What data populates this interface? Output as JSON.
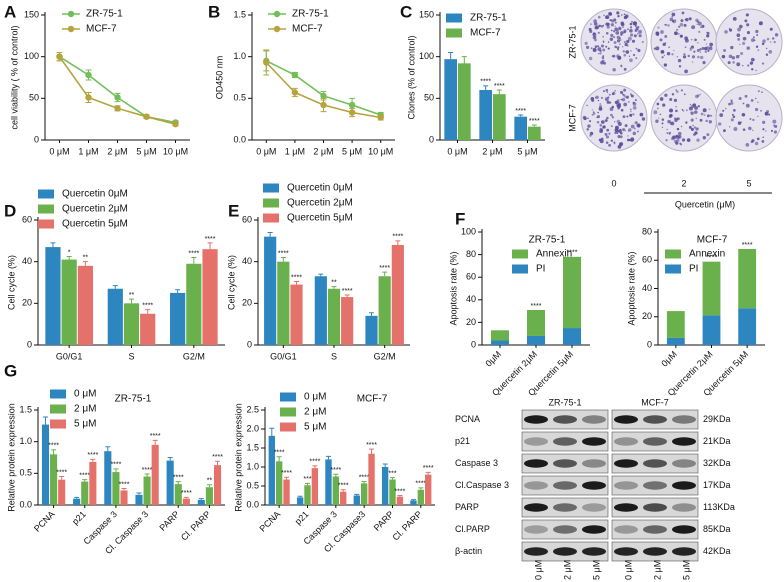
{
  "panel_letters": [
    "A",
    "B",
    "C",
    "D",
    "E",
    "F",
    "G"
  ],
  "chart_data": [
    {
      "type": "line",
      "ylabel": "cell viability ( % of control)",
      "categories": [
        "0 μM",
        "1 μM",
        "2 μM",
        "5 μM",
        "10 μM"
      ],
      "ylim": [
        0,
        150
      ],
      "yticks": [
        0,
        50,
        100,
        150
      ],
      "series": [
        {
          "name": "ZR-75-1",
          "color": "#72bf5a",
          "values": [
            100,
            78,
            51,
            28,
            21
          ],
          "errors": [
            5,
            6,
            5,
            2,
            2
          ]
        },
        {
          "name": "MCF-7",
          "color": "#b5a33c",
          "values": [
            100,
            51,
            38,
            28,
            19
          ],
          "errors": [
            5,
            6,
            3,
            2,
            2
          ]
        }
      ]
    },
    {
      "type": "line",
      "ylabel": "OD450 nm",
      "categories": [
        "0 μM",
        "1 μM",
        "2 μM",
        "5 μM",
        "10 μM"
      ],
      "ylim": [
        0,
        1.5
      ],
      "yticks": [
        {
          "value": 0,
          "label": "0.0"
        },
        0.5,
        {
          "value": 1,
          "label": "1.0"
        },
        1.5
      ],
      "series": [
        {
          "name": "ZR-75-1",
          "color": "#72bf5a",
          "values": [
            0.95,
            0.78,
            0.53,
            0.42,
            0.3
          ],
          "errors": [
            0.12,
            0.03,
            0.05,
            0.08,
            0.03
          ]
        },
        {
          "name": "MCF-7",
          "color": "#b5a33c",
          "values": [
            0.93,
            0.57,
            0.42,
            0.33,
            0.27
          ],
          "errors": [
            0.15,
            0.05,
            0.08,
            0.05,
            0.03
          ]
        }
      ]
    },
    {
      "type": "bar",
      "ylabel": "Clones (% of control)",
      "categories": [
        "0 μM",
        "2 μM",
        "5 μM"
      ],
      "ylim": [
        0,
        150
      ],
      "yticks": [
        0,
        50,
        100,
        150
      ],
      "series": [
        {
          "name": "ZR-75-1",
          "color": "#2e86c1",
          "values": [
            97,
            60,
            28
          ],
          "errors": [
            8,
            5,
            2
          ],
          "annotations": [
            null,
            "****",
            "****"
          ]
        },
        {
          "name": "MCF-7",
          "color": "#6ab04c",
          "values": [
            92,
            55,
            16
          ],
          "errors": [
            8,
            5,
            2
          ],
          "annotations": [
            null,
            "****",
            "****"
          ]
        }
      ]
    },
    {
      "type": "bar",
      "ylabel": "Cell cycle (%)",
      "categories": [
        "G0/G1",
        "S",
        "G2/M"
      ],
      "ylim": [
        0,
        60
      ],
      "yticks": [
        0,
        20,
        40,
        60
      ],
      "series": [
        {
          "name": "Quercetin 0μM",
          "color": "#2e86c1",
          "values": [
            47,
            27,
            25
          ],
          "errors": [
            2,
            1.5,
            1.5
          ]
        },
        {
          "name": "Quercetin 2μM",
          "color": "#6ab04c",
          "values": [
            41,
            20,
            39
          ],
          "errors": [
            1.5,
            2,
            3
          ],
          "annotations": [
            "*",
            "**",
            "****"
          ]
        },
        {
          "name": "Quercetin 5μM",
          "color": "#e4726b",
          "values": [
            38,
            15,
            46
          ],
          "errors": [
            2,
            2,
            3
          ],
          "annotations": [
            "**",
            "****",
            "****"
          ]
        }
      ]
    },
    {
      "type": "bar",
      "ylabel": "Cell cycle (%)",
      "categories": [
        "G0/G1",
        "S",
        "G2/M"
      ],
      "ylim": [
        0,
        60
      ],
      "yticks": [
        0,
        20,
        40,
        60
      ],
      "series": [
        {
          "name": "Quercetin 0μM",
          "color": "#2e86c1",
          "values": [
            52,
            33,
            14
          ],
          "errors": [
            2,
            1,
            1.5
          ]
        },
        {
          "name": "Quercetin 2μM",
          "color": "#6ab04c",
          "values": [
            40,
            27,
            33
          ],
          "errors": [
            2,
            1,
            2
          ],
          "annotations": [
            "****",
            "**",
            "****"
          ]
        },
        {
          "name": "Quercetin 5μM",
          "color": "#e4726b",
          "values": [
            29,
            23,
            48
          ],
          "errors": [
            1.5,
            1,
            2
          ],
          "annotations": [
            "****",
            "****",
            "****"
          ]
        }
      ]
    },
    {
      "type": "stacked_bar",
      "title": "ZR-75-1",
      "ylabel": "Apoptosis rate (%)",
      "categories": [
        "0μM",
        "Quercetin 2μM",
        "Quercetin 5μM"
      ],
      "ylim": [
        0,
        100
      ],
      "yticks": [
        0,
        20,
        40,
        60,
        80,
        100
      ],
      "series": [
        {
          "name": "PI",
          "color": "#2e86c1",
          "values": [
            4,
            8,
            15
          ]
        },
        {
          "name": "Annexin",
          "color": "#6ab04c",
          "values": [
            9,
            23,
            63
          ],
          "annotations": [
            null,
            "****",
            "****"
          ]
        }
      ]
    },
    {
      "type": "stacked_bar",
      "title": "MCF-7",
      "ylabel": "Apoptosis rate (%)",
      "categories": [
        "0μM",
        "Quercetin 2μM",
        "Quercetin 5μM"
      ],
      "ylim": [
        0,
        80
      ],
      "yticks": [
        0,
        20,
        40,
        60,
        80
      ],
      "series": [
        {
          "name": "PI",
          "color": "#2e86c1",
          "values": [
            5,
            21,
            26
          ]
        },
        {
          "name": "Annexin",
          "color": "#6ab04c",
          "values": [
            19,
            38,
            42
          ],
          "annotations": [
            null,
            "****",
            "****"
          ]
        }
      ]
    },
    {
      "type": "bar",
      "title": "ZR-75-1",
      "ylabel": "Relative protein expression",
      "categories": [
        "PCNA",
        "p21",
        "Caspase 3",
        "Cl. Caspase 3",
        "PARP",
        "Cl. PARP"
      ],
      "ylim": [
        0,
        1.5
      ],
      "yticks": [
        {
          "value": 0,
          "label": "0.0"
        },
        0.5,
        {
          "value": 1,
          "label": "1.0"
        },
        1.5
      ],
      "series": [
        {
          "name": "0 μM",
          "color": "#2e86c1",
          "values": [
            1.27,
            0.1,
            0.85,
            0.16,
            0.7,
            0.08
          ],
          "errors": [
            0.12,
            0.02,
            0.07,
            0.03,
            0.05,
            0.02
          ]
        },
        {
          "name": "2 μM",
          "color": "#6ab04c",
          "values": [
            0.8,
            0.37,
            0.52,
            0.45,
            0.33,
            0.28
          ],
          "errors": [
            0.07,
            0.03,
            0.05,
            0.04,
            0.04,
            0.04
          ],
          "annotations": [
            "****",
            "****",
            "****",
            "****",
            "****",
            "**"
          ]
        },
        {
          "name": "5 μM",
          "color": "#e4726b",
          "values": [
            0.4,
            0.68,
            0.23,
            0.95,
            0.1,
            0.63
          ],
          "errors": [
            0.05,
            0.04,
            0.03,
            0.07,
            0.02,
            0.06
          ],
          "annotations": [
            "****",
            "****",
            "****",
            "****",
            "****",
            "****"
          ]
        }
      ]
    },
    {
      "type": "bar",
      "title": "MCF-7",
      "ylabel": "Relative protein expression",
      "categories": [
        "PCNA",
        "p21",
        "Caspase 3",
        "Cl. Caspase3",
        "PARP",
        "Cl. PARP"
      ],
      "ylim": [
        0,
        2.5
      ],
      "yticks": [
        {
          "value": 0,
          "label": "0.0"
        },
        0.5,
        {
          "value": 1,
          "label": "1.0"
        },
        1.5,
        {
          "value": 2,
          "label": "2.0"
        },
        2.5
      ],
      "series": [
        {
          "name": "0 μM",
          "color": "#2e86c1",
          "values": [
            1.82,
            0.2,
            1.2,
            0.25,
            1.0,
            0.12
          ],
          "errors": [
            0.2,
            0.03,
            0.08,
            0.03,
            0.08,
            0.02
          ]
        },
        {
          "name": "2 μM",
          "color": "#6ab04c",
          "values": [
            1.15,
            0.52,
            0.75,
            0.57,
            0.67,
            0.4
          ],
          "errors": [
            0.12,
            0.05,
            0.06,
            0.05,
            0.05,
            0.05
          ],
          "annotations": [
            "****",
            "***",
            "****",
            "****",
            "***",
            "****"
          ]
        },
        {
          "name": "5 μM",
          "color": "#e4726b",
          "values": [
            0.67,
            0.97,
            0.35,
            1.35,
            0.22,
            0.8
          ],
          "errors": [
            0.06,
            0.06,
            0.05,
            0.12,
            0.03,
            0.06
          ],
          "annotations": [
            "****",
            "****",
            "****",
            "****",
            "****",
            "****"
          ]
        }
      ]
    }
  ],
  "colony_images": {
    "row_labels": [
      "ZR-75-1",
      "MCF-7"
    ],
    "column_labels": [
      "0",
      "2",
      "5"
    ],
    "axis_label": "Quercetin (μM)"
  },
  "western_blot": {
    "column_groups": [
      "ZR-75-1",
      "MCF-7"
    ],
    "lanes": [
      "0 μM",
      "2 μM",
      "5 μM",
      "0 μM",
      "2 μM",
      "5 μM"
    ],
    "proteins": [
      "PCNA",
      "p21",
      "Caspase 3",
      "Cl.Caspase 3",
      "PARP",
      "Cl.PARP",
      "β-actin"
    ],
    "sizes": [
      "29KDa",
      "21KDa",
      "32KDa",
      "17KDa",
      "113KDa",
      "85KDa",
      "42KDa"
    ]
  }
}
